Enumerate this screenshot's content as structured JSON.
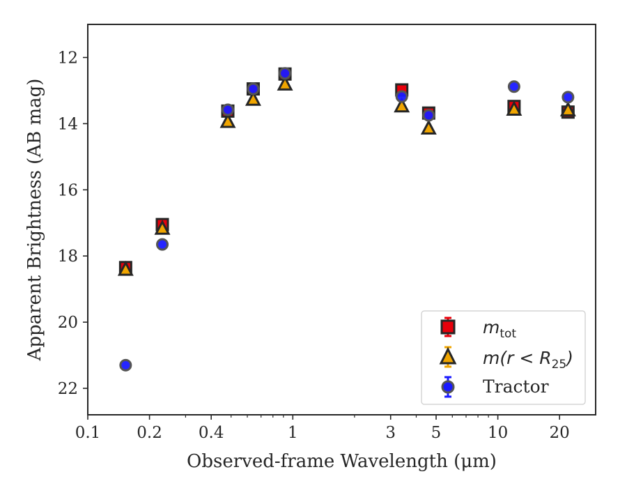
{
  "chart_data": {
    "type": "scatter",
    "xscale": "log",
    "yinverted": true,
    "xlabel": "Observed-frame Wavelength (μm)",
    "ylabel": "Apparent Brightness (AB mag)",
    "xlim": [
      0.1,
      30
    ],
    "ylim": [
      22.8,
      11.0
    ],
    "xticks": [
      0.1,
      0.2,
      0.4,
      1,
      3,
      5,
      10,
      20
    ],
    "xtick_labels": [
      "0.1",
      "0.2",
      "0.4",
      "1",
      "3",
      "5",
      "10",
      "20"
    ],
    "yticks": [
      12,
      14,
      16,
      18,
      20,
      22
    ],
    "ytick_labels": [
      "12",
      "14",
      "16",
      "18",
      "20",
      "22"
    ],
    "legend_position": "bottom-right",
    "series": [
      {
        "name": "m_tot",
        "marker": "square",
        "color": "#e8000b",
        "x": [
          0.153,
          0.231,
          0.482,
          0.641,
          0.916,
          3.4,
          4.6,
          12.0,
          22.0
        ],
        "y": [
          18.35,
          17.05,
          13.62,
          12.95,
          12.5,
          12.98,
          13.68,
          13.48,
          13.65
        ]
      },
      {
        "name": "m(r<R25)",
        "marker": "triangle",
        "color": "#f0a500",
        "x": [
          0.153,
          0.231,
          0.482,
          0.641,
          0.916,
          3.4,
          4.6,
          12.0,
          22.0
        ],
        "y": [
          18.42,
          17.18,
          13.95,
          13.28,
          12.82,
          13.48,
          14.15,
          13.58,
          13.6
        ]
      },
      {
        "name": "Tractor",
        "marker": "circle",
        "color": "#1a1aff",
        "x": [
          0.153,
          0.231,
          0.482,
          0.641,
          0.916,
          3.4,
          4.6,
          12.0,
          22.0
        ],
        "y": [
          21.3,
          17.65,
          13.58,
          12.95,
          12.48,
          13.18,
          13.75,
          12.88,
          13.2
        ]
      }
    ]
  },
  "legend": {
    "tot_main": "m",
    "tot_sub": "tot",
    "r25_main": "m(r < R",
    "r25_sub": "25",
    "r25_close": ")",
    "tractor": "Tractor"
  }
}
